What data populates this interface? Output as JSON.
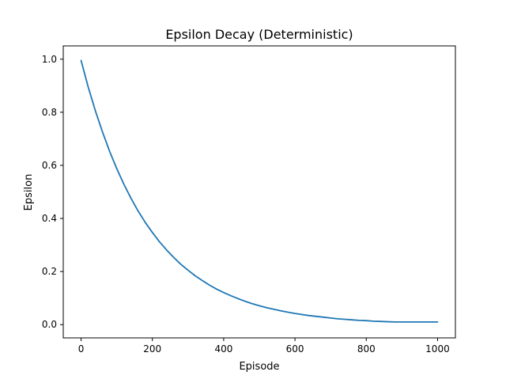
{
  "chart_data": {
    "type": "line",
    "title": "Epsilon Decay (Deterministic)",
    "xlabel": "Episode",
    "ylabel": "Epsilon",
    "xlim": [
      -50,
      1050
    ],
    "ylim": [
      -0.05,
      1.05
    ],
    "xticks": [
      0,
      200,
      400,
      600,
      800,
      1000
    ],
    "yticks": [
      0.0,
      0.2,
      0.4,
      0.6,
      0.8,
      1.0
    ],
    "xtick_labels": [
      "0",
      "200",
      "400",
      "600",
      "800",
      "1000"
    ],
    "ytick_labels": [
      "0.0",
      "0.2",
      "0.4",
      "0.6",
      "0.8",
      "1.0"
    ],
    "grid": false,
    "legend": "none",
    "series": [
      {
        "color": "#1f77b4",
        "x": [
          0,
          20,
          40,
          60,
          80,
          100,
          120,
          140,
          160,
          180,
          200,
          220,
          240,
          260,
          280,
          300,
          320,
          340,
          360,
          380,
          400,
          420,
          440,
          460,
          480,
          500,
          520,
          540,
          560,
          580,
          600,
          620,
          640,
          660,
          680,
          700,
          720,
          740,
          760,
          780,
          800,
          820,
          840,
          860,
          880,
          900,
          918,
          940,
          960,
          980,
          1000
        ],
        "y": [
          0.995,
          0.895,
          0.806,
          0.726,
          0.653,
          0.588,
          0.529,
          0.476,
          0.428,
          0.385,
          0.347,
          0.312,
          0.281,
          0.253,
          0.227,
          0.205,
          0.184,
          0.166,
          0.149,
          0.134,
          0.121,
          0.109,
          0.098,
          0.088,
          0.079,
          0.071,
          0.064,
          0.058,
          0.052,
          0.047,
          0.042,
          0.038,
          0.034,
          0.031,
          0.028,
          0.025,
          0.022,
          0.02,
          0.018,
          0.016,
          0.015,
          0.013,
          0.012,
          0.011,
          0.01,
          0.01,
          0.01,
          0.01,
          0.01,
          0.01,
          0.01
        ]
      }
    ]
  }
}
